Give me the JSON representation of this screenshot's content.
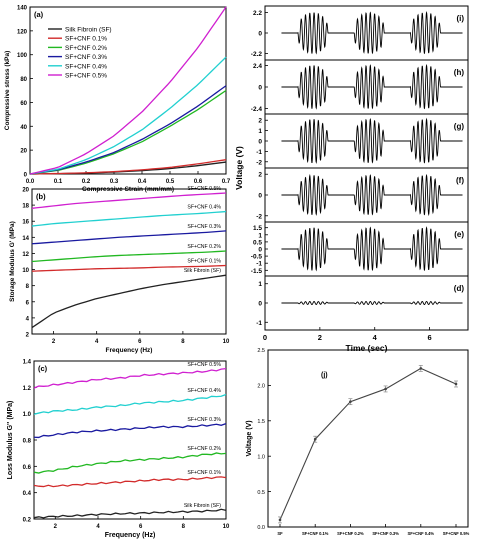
{
  "chart_data": [
    {
      "panel_label": "(a)",
      "type": "line",
      "xlabel": "Compressive Strain (mm/mm)",
      "ylabel": "Compressive stress (kPa)",
      "xlim": [
        0.0,
        0.7
      ],
      "ylim": [
        0,
        140
      ],
      "xticks": [
        "0.0",
        "0.1",
        "0.2",
        "0.3",
        "0.4",
        "0.5",
        "0.6",
        "0.7"
      ],
      "yticks": [
        "0",
        "20",
        "40",
        "60",
        "80",
        "100",
        "120",
        "140"
      ],
      "legend_position": "top-left",
      "x": [
        0.0,
        0.1,
        0.2,
        0.3,
        0.4,
        0.5,
        0.6,
        0.7
      ],
      "series": [
        {
          "name": "Silk Fibroin (SF)",
          "color": "#222222",
          "values": [
            0,
            0.3,
            0.8,
            1.6,
            2.8,
            4.5,
            7,
            10
          ]
        },
        {
          "name": "SF+CNF 0.1%",
          "color": "#d22b2b",
          "values": [
            0,
            0.4,
            1,
            2,
            3.5,
            5.5,
            8.5,
            12
          ]
        },
        {
          "name": "SF+CNF 0.2%",
          "color": "#22b822",
          "values": [
            0,
            3,
            9,
            17,
            27,
            40,
            54,
            70
          ]
        },
        {
          "name": "SF+CNF 0.3%",
          "color": "#1a1aa0",
          "values": [
            0,
            3.5,
            10,
            18,
            29,
            42,
            57,
            74
          ]
        },
        {
          "name": "SF+CNF 0.4%",
          "color": "#22d0d0",
          "values": [
            0,
            4,
            12,
            23,
            37,
            55,
            75,
            98
          ]
        },
        {
          "name": "SF+CNF 0.5%",
          "color": "#d020d0",
          "values": [
            0,
            5.5,
            17,
            32,
            52,
            77,
            106,
            140
          ]
        }
      ]
    },
    {
      "panel_label": "(b)",
      "type": "line",
      "xlabel": "Frequency (Hz)",
      "ylabel": "Storage Modulus G' (MPa)",
      "xlim": [
        1,
        10
      ],
      "ylim": [
        2,
        20
      ],
      "xticks": [
        "2",
        "4",
        "6",
        "8",
        "10"
      ],
      "yticks": [
        "2",
        "4",
        "6",
        "8",
        "10",
        "12",
        "14",
        "16",
        "18",
        "20"
      ],
      "x": [
        1,
        2,
        3,
        4,
        5,
        6,
        7,
        8,
        9,
        10
      ],
      "series": [
        {
          "name": "Silk Fibroin (SF)",
          "color": "#222222",
          "values": [
            2.8,
            4.6,
            5.6,
            6.4,
            7.0,
            7.6,
            8.1,
            8.5,
            8.9,
            9.3
          ]
        },
        {
          "name": "SF+CNF 0.1%",
          "color": "#d22b2b",
          "values": [
            9.8,
            9.9,
            10.0,
            10.1,
            10.15,
            10.2,
            10.3,
            10.35,
            10.4,
            10.5
          ]
        },
        {
          "name": "SF+CNF 0.2%",
          "color": "#22b822",
          "values": [
            11.0,
            11.2,
            11.4,
            11.6,
            11.75,
            11.85,
            11.95,
            12.05,
            12.15,
            12.3
          ]
        },
        {
          "name": "SF+CNF 0.3%",
          "color": "#1a1aa0",
          "values": [
            13.2,
            13.4,
            13.6,
            13.8,
            14.0,
            14.15,
            14.3,
            14.45,
            14.6,
            14.8
          ]
        },
        {
          "name": "SF+CNF 0.4%",
          "color": "#22d0d0",
          "values": [
            15.4,
            15.7,
            15.9,
            16.1,
            16.3,
            16.5,
            16.7,
            16.85,
            17.0,
            17.2
          ]
        },
        {
          "name": "SF+CNF 0.5%",
          "color": "#d020d0",
          "values": [
            17.6,
            17.9,
            18.2,
            18.4,
            18.6,
            18.8,
            19.0,
            19.2,
            19.35,
            19.5
          ]
        }
      ]
    },
    {
      "panel_label": "(c)",
      "type": "line",
      "xlabel": "Frequency (Hz)",
      "ylabel": "Loss Modulus G'' (MPa)",
      "xlim": [
        1,
        10
      ],
      "ylim": [
        0.2,
        1.4
      ],
      "xticks": [
        "2",
        "4",
        "6",
        "8",
        "10"
      ],
      "yticks": [
        "0.2",
        "0.4",
        "0.6",
        "0.8",
        "1.0",
        "1.2",
        "1.4"
      ],
      "x": [
        1,
        2,
        3,
        4,
        5,
        6,
        7,
        8,
        9,
        10
      ],
      "series": [
        {
          "name": "Silk Fibroin (SF)",
          "color": "#222222",
          "values": [
            0.21,
            0.22,
            0.225,
            0.235,
            0.24,
            0.245,
            0.25,
            0.255,
            0.26,
            0.27
          ]
        },
        {
          "name": "SF+CNF 0.1%",
          "color": "#d22b2b",
          "values": [
            0.45,
            0.45,
            0.46,
            0.47,
            0.48,
            0.49,
            0.5,
            0.5,
            0.51,
            0.52
          ]
        },
        {
          "name": "SF+CNF 0.2%",
          "color": "#22b822",
          "values": [
            0.55,
            0.57,
            0.6,
            0.62,
            0.64,
            0.65,
            0.66,
            0.67,
            0.69,
            0.7
          ]
        },
        {
          "name": "SF+CNF 0.3%",
          "color": "#1a1aa0",
          "values": [
            0.82,
            0.84,
            0.86,
            0.87,
            0.88,
            0.89,
            0.9,
            0.9,
            0.91,
            0.92
          ]
        },
        {
          "name": "SF+CNF 0.4%",
          "color": "#22d0d0",
          "values": [
            1.0,
            1.02,
            1.03,
            1.05,
            1.06,
            1.08,
            1.09,
            1.1,
            1.12,
            1.14
          ]
        },
        {
          "name": "SF+CNF 0.5%",
          "color": "#d020d0",
          "values": [
            1.2,
            1.22,
            1.24,
            1.26,
            1.27,
            1.29,
            1.3,
            1.31,
            1.32,
            1.34
          ]
        }
      ]
    },
    {
      "type": "line",
      "xlabel": "Time (sec)",
      "ylabel": "Voltage (V)",
      "xlim": [
        0,
        7.4
      ],
      "xticks": [
        "0",
        "2",
        "4",
        "6"
      ],
      "subplots": [
        {
          "panel_label": "(i)",
          "yticks": [
            "2.2",
            "0",
            "-2.2"
          ],
          "ylim": [
            -2.9,
            2.9
          ],
          "amplitude": 2.2
        },
        {
          "panel_label": "(h)",
          "yticks": [
            "2.4",
            "0",
            "-2.4"
          ],
          "ylim": [
            -3.0,
            3.0
          ],
          "amplitude": 2.4
        },
        {
          "panel_label": "(g)",
          "yticks": [
            "2",
            "1",
            "0",
            "-1",
            "-2"
          ],
          "ylim": [
            -2.6,
            2.6
          ],
          "amplitude": 2.1
        },
        {
          "panel_label": "(f)",
          "yticks": [
            "2",
            "0",
            "-2"
          ],
          "ylim": [
            -2.6,
            2.6
          ],
          "amplitude": 1.9
        },
        {
          "panel_label": "(e)",
          "yticks": [
            "1.5",
            "1",
            "0.5",
            "0",
            "-0.5",
            "-1",
            "-1.5"
          ],
          "ylim": [
            -1.9,
            1.9
          ],
          "amplitude": 1.5
        },
        {
          "panel_label": "(d)",
          "yticks": [
            "1",
            "0",
            "-1"
          ],
          "ylim": [
            -1.4,
            1.4
          ],
          "amplitude": 0.08
        }
      ],
      "burst_centers_sec": [
        1.75,
        3.8,
        5.85
      ],
      "color": "#000000"
    },
    {
      "panel_label": "(j)",
      "type": "line",
      "xlabel": "",
      "ylabel": "Voltage (V)",
      "ylim": [
        0.0,
        2.5
      ],
      "yticks": [
        "0.0",
        "0.5",
        "1.0",
        "1.5",
        "2.0",
        "2.5"
      ],
      "categories": [
        "SF",
        "SF+CNF 0.1%",
        "SF+CNF 0.2%",
        "SF+CNF 0.3%",
        "SF+CNF 0.4%",
        "SF+CNF 0.5%"
      ],
      "values": [
        0.1,
        1.24,
        1.77,
        1.95,
        2.24,
        2.02
      ],
      "color": "#444444"
    }
  ]
}
